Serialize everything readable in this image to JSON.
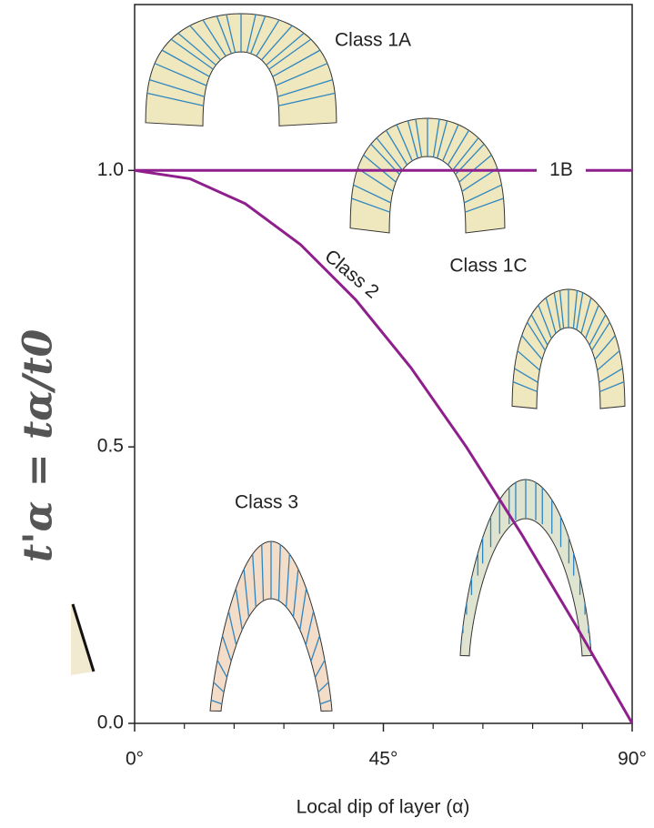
{
  "chart_data": {
    "type": "line",
    "y_label": "t'α = tα/t0",
    "x_label": "Local dip of layer (α)",
    "x": [
      0,
      10,
      20,
      30,
      40,
      50,
      60,
      70,
      80,
      90
    ],
    "series": [
      {
        "name": "1B",
        "color": "#8e1f8c",
        "values": [
          1,
          1,
          1,
          1,
          1,
          1,
          1,
          1,
          1,
          1
        ]
      },
      {
        "name": "Class 2",
        "color": "#8e1f8c",
        "values": [
          1,
          0.985,
          0.94,
          0.866,
          0.766,
          0.643,
          0.5,
          0.342,
          0.174,
          0
        ]
      }
    ],
    "annotations": [
      "Class 1A",
      "Class 1C",
      "Class 3"
    ],
    "xlim": [
      0,
      90
    ],
    "xticks": [
      {
        "value": 0,
        "label": "0°"
      },
      {
        "value": 45,
        "label": "45°"
      },
      {
        "value": 90,
        "label": "90°"
      }
    ],
    "xminor_ticks": [
      9,
      18,
      27,
      36,
      54,
      63,
      72,
      81
    ],
    "ylim": [
      0,
      1.3
    ],
    "yticks": [
      {
        "value": 0,
        "label": "0.0"
      },
      0.5,
      {
        "value": 1,
        "label": "1.0"
      }
    ],
    "grid": false
  }
}
